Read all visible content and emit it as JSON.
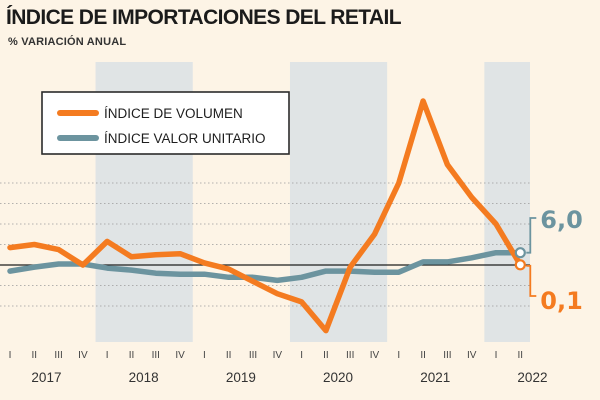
{
  "chart_data": {
    "type": "line",
    "title": "ÍNDICE DE IMPORTACIONES DEL RETAIL",
    "subtitle": "% VARIACIÓN ANUAL",
    "quarters": [
      "I",
      "II",
      "III",
      "IV",
      "I",
      "II",
      "III",
      "IV",
      "I",
      "II",
      "III",
      "IV",
      "I",
      "II",
      "III",
      "IV",
      "I",
      "II",
      "III",
      "IV",
      "I",
      "II"
    ],
    "years": [
      {
        "label": "2017",
        "start": 0
      },
      {
        "label": "2018",
        "start": 4
      },
      {
        "label": "2019",
        "start": 8
      },
      {
        "label": "2020",
        "start": 12
      },
      {
        "label": "2021",
        "start": 16
      },
      {
        "label": "2022",
        "start": 20
      }
    ],
    "ylim": [
      -20,
      50
    ],
    "gridlines": [
      -20,
      -10,
      10,
      20,
      30,
      40
    ],
    "series": [
      {
        "name": "ÍNDICE DE VOLUMEN",
        "color": "#f47b20",
        "values": [
          8.5,
          10,
          7.5,
          0,
          11.5,
          4,
          5,
          5.5,
          1,
          -2,
          -8,
          -14,
          -18,
          -32,
          -1,
          15,
          40,
          80,
          49,
          33,
          20,
          0.1
        ]
      },
      {
        "name": "ÍNDICE VALOR UNITARIO",
        "color": "#6c949f",
        "values": [
          -3,
          -1,
          0.5,
          0.5,
          -1.5,
          -2.5,
          -4,
          -4.5,
          -4.5,
          -6,
          -6,
          -7.5,
          -6,
          -3,
          -3,
          -3.5,
          -3.5,
          1.5,
          1.5,
          3.5,
          6,
          6.0
        ]
      }
    ],
    "end_labels": {
      "volumen": "0,1",
      "valor_unitario": "6,0"
    }
  }
}
